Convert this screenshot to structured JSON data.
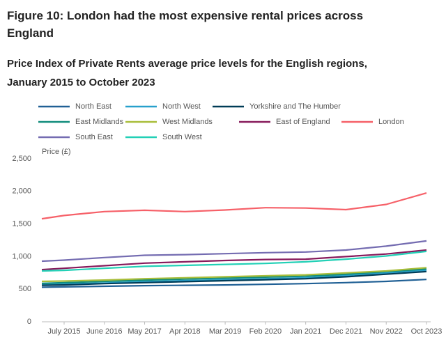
{
  "chart_data": {
    "type": "line",
    "title": "Figure 10: London had the most expensive rental prices across England",
    "subtitle": "Price Index of Private Rents average price levels for the English regions, January 2015 to October 2023",
    "y_label": "Price (£)",
    "categories": [
      null,
      "July 2015",
      "June 2016",
      "May 2017",
      "Apr 2018",
      "Mar 2019",
      "Feb 2020",
      "Jan 2021",
      "Dec 2021",
      "Nov 2022",
      "Oct 2023"
    ],
    "ylim": [
      0,
      2500
    ],
    "yticks": [
      0,
      {
        "value": 500,
        "label": "500"
      },
      {
        "value": 1000,
        "label": "1,000"
      },
      {
        "value": 1500,
        "label": "1,500"
      },
      {
        "value": 2000,
        "label": "2,000"
      },
      {
        "value": 2500,
        "label": "2,500"
      }
    ],
    "series": [
      {
        "name": "North East",
        "color": "#206095",
        "values": [
          530,
          535,
          545,
          555,
          560,
          565,
          575,
          585,
          600,
          620,
          650
        ]
      },
      {
        "name": "North West",
        "color": "#27a0cc",
        "values": [
          575,
          580,
          595,
          615,
          630,
          645,
          660,
          675,
          710,
          750,
          795
        ]
      },
      {
        "name": "Yorkshire and The Humber",
        "color": "#003c57",
        "values": [
          560,
          565,
          585,
          600,
          615,
          630,
          645,
          660,
          690,
          730,
          770
        ]
      },
      {
        "name": "East Midlands",
        "color": "#118c7b",
        "values": [
          590,
          600,
          620,
          640,
          655,
          670,
          685,
          700,
          730,
          770,
          810
        ]
      },
      {
        "name": "West Midlands",
        "color": "#a8bd3a",
        "values": [
          620,
          625,
          640,
          660,
          675,
          690,
          705,
          720,
          750,
          780,
          830
        ]
      },
      {
        "name": "East of England",
        "color": "#871a5b",
        "values": [
          800,
          820,
          860,
          900,
          920,
          940,
          955,
          960,
          1000,
          1040,
          1100
        ]
      },
      {
        "name": "London",
        "color": "#f66068",
        "values": [
          1580,
          1630,
          1690,
          1710,
          1690,
          1715,
          1750,
          1745,
          1720,
          1800,
          1975
        ]
      },
      {
        "name": "South East",
        "color": "#746cb1",
        "values": [
          930,
          945,
          985,
          1020,
          1030,
          1045,
          1060,
          1070,
          1100,
          1160,
          1240
        ]
      },
      {
        "name": "South West",
        "color": "#22d0b6",
        "values": [
          780,
          790,
          820,
          850,
          865,
          880,
          895,
          920,
          960,
          1010,
          1080
        ]
      }
    ]
  }
}
